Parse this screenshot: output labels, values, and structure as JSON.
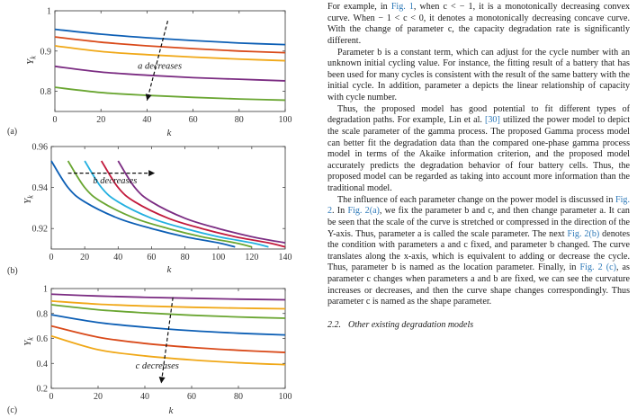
{
  "figure": {
    "panels": [
      {
        "label": "(a)",
        "y_axis_label": "Y_k",
        "x_axis_label": "k",
        "annotation": "a decreases",
        "chart_data": {
          "type": "line",
          "xlim": [
            0,
            100
          ],
          "ylim": [
            0.75,
            1.0
          ],
          "xticks": [
            "0",
            "20",
            "40",
            "60",
            "80",
            "100"
          ],
          "yticks": [
            "0.8",
            "0.9",
            "1"
          ],
          "grid": false,
          "series": [
            {
              "color": "#0d5fb5",
              "points": [
                [
                  0,
                  0.954
                ],
                [
                  20,
                  0.942
                ],
                [
                  40,
                  0.933
                ],
                [
                  60,
                  0.926
                ],
                [
                  80,
                  0.92
                ],
                [
                  100,
                  0.916
                ]
              ]
            },
            {
              "color": "#d94a1a",
              "points": [
                [
                  0,
                  0.935
                ],
                [
                  20,
                  0.922
                ],
                [
                  40,
                  0.913
                ],
                [
                  60,
                  0.906
                ],
                [
                  80,
                  0.9
                ],
                [
                  100,
                  0.896
                ]
              ]
            },
            {
              "color": "#f0a818",
              "points": [
                [
                  0,
                  0.913
                ],
                [
                  20,
                  0.899
                ],
                [
                  40,
                  0.891
                ],
                [
                  60,
                  0.885
                ],
                [
                  80,
                  0.88
                ],
                [
                  100,
                  0.876
                ]
              ]
            },
            {
              "color": "#7b2c82",
              "points": [
                [
                  0,
                  0.862
                ],
                [
                  20,
                  0.848
                ],
                [
                  40,
                  0.84
                ],
                [
                  60,
                  0.834
                ],
                [
                  80,
                  0.83
                ],
                [
                  100,
                  0.826
                ]
              ]
            },
            {
              "color": "#6aa632",
              "points": [
                [
                  0,
                  0.81
                ],
                [
                  20,
                  0.797
                ],
                [
                  40,
                  0.79
                ],
                [
                  60,
                  0.785
                ],
                [
                  80,
                  0.781
                ],
                [
                  100,
                  0.778
                ]
              ]
            }
          ]
        }
      },
      {
        "label": "(b)",
        "y_axis_label": "Y_k",
        "x_axis_label": "k",
        "annotation": "b decreases",
        "chart_data": {
          "type": "line",
          "xlim": [
            0,
            140
          ],
          "ylim": [
            0.91,
            0.96
          ],
          "xticks": [
            "0",
            "20",
            "40",
            "60",
            "80",
            "100",
            "120",
            "140"
          ],
          "yticks": [
            "0.92",
            "0.94",
            "0.96"
          ],
          "grid": false,
          "series": [
            {
              "color": "#0d5fb5",
              "points": [
                [
                  0,
                  0.953
                ],
                [
                  10,
                  0.94
                ],
                [
                  20,
                  0.933
                ],
                [
                  40,
                  0.925
                ],
                [
                  60,
                  0.92
                ],
                [
                  80,
                  0.916
                ],
                [
                  100,
                  0.913
                ],
                [
                  110,
                  0.911
                ]
              ]
            },
            {
              "color": "#6aa632",
              "points": [
                [
                  10,
                  0.953
                ],
                [
                  20,
                  0.94
                ],
                [
                  30,
                  0.933
                ],
                [
                  50,
                  0.925
                ],
                [
                  70,
                  0.92
                ],
                [
                  90,
                  0.916
                ],
                [
                  110,
                  0.913
                ],
                [
                  120,
                  0.911
                ]
              ]
            },
            {
              "color": "#23b0e0",
              "points": [
                [
                  20,
                  0.953
                ],
                [
                  30,
                  0.94
                ],
                [
                  40,
                  0.933
                ],
                [
                  60,
                  0.925
                ],
                [
                  80,
                  0.92
                ],
                [
                  100,
                  0.916
                ],
                [
                  120,
                  0.913
                ],
                [
                  130,
                  0.911
                ]
              ]
            },
            {
              "color": "#c21a3c",
              "points": [
                [
                  30,
                  0.953
                ],
                [
                  40,
                  0.94
                ],
                [
                  50,
                  0.933
                ],
                [
                  70,
                  0.925
                ],
                [
                  90,
                  0.92
                ],
                [
                  110,
                  0.916
                ],
                [
                  130,
                  0.913
                ],
                [
                  140,
                  0.911
                ]
              ]
            },
            {
              "color": "#7b2c82",
              "points": [
                [
                  40,
                  0.953
                ],
                [
                  50,
                  0.94
                ],
                [
                  60,
                  0.933
                ],
                [
                  80,
                  0.925
                ],
                [
                  100,
                  0.92
                ],
                [
                  120,
                  0.916
                ],
                [
                  140,
                  0.913
                ]
              ]
            }
          ]
        }
      },
      {
        "label": "(c)",
        "y_axis_label": "Y_k",
        "x_axis_label": "k",
        "annotation": "c decreases",
        "chart_data": {
          "type": "line",
          "xlim": [
            0,
            100
          ],
          "ylim": [
            0.2,
            1.0
          ],
          "xticks": [
            "0",
            "20",
            "40",
            "60",
            "80",
            "100"
          ],
          "yticks": [
            "0.2",
            "0.4",
            "0.6",
            "0.8",
            "1"
          ],
          "grid": false,
          "series": [
            {
              "color": "#7b2c82",
              "points": [
                [
                  0,
                  0.955
                ],
                [
                  20,
                  0.94
                ],
                [
                  40,
                  0.93
                ],
                [
                  60,
                  0.922
                ],
                [
                  80,
                  0.915
                ],
                [
                  100,
                  0.91
                ]
              ]
            },
            {
              "color": "#f0a818",
              "points": [
                [
                  0,
                  0.9
                ],
                [
                  20,
                  0.875
                ],
                [
                  40,
                  0.86
                ],
                [
                  60,
                  0.85
                ],
                [
                  80,
                  0.843
                ],
                [
                  100,
                  0.838
                ]
              ]
            },
            {
              "color": "#6aa632",
              "points": [
                [
                  0,
                  0.87
                ],
                [
                  20,
                  0.83
                ],
                [
                  40,
                  0.805
                ],
                [
                  60,
                  0.786
                ],
                [
                  80,
                  0.772
                ],
                [
                  100,
                  0.762
                ]
              ]
            },
            {
              "color": "#0d5fb5",
              "points": [
                [
                  0,
                  0.79
                ],
                [
                  20,
                  0.728
                ],
                [
                  40,
                  0.69
                ],
                [
                  60,
                  0.662
                ],
                [
                  80,
                  0.642
                ],
                [
                  100,
                  0.628
                ]
              ]
            },
            {
              "color": "#d94a1a",
              "points": [
                [
                  0,
                  0.7
                ],
                [
                  20,
                  0.61
                ],
                [
                  40,
                  0.56
                ],
                [
                  60,
                  0.528
                ],
                [
                  80,
                  0.505
                ],
                [
                  100,
                  0.488
                ]
              ]
            },
            {
              "color": "#f0a818",
              "points": [
                [
                  0,
                  0.62
                ],
                [
                  20,
                  0.51
                ],
                [
                  40,
                  0.46
                ],
                [
                  60,
                  0.428
                ],
                [
                  80,
                  0.405
                ],
                [
                  100,
                  0.39
                ]
              ]
            }
          ]
        }
      }
    ]
  },
  "text": {
    "para1": [
      {
        "t": "For example, in "
      },
      {
        "t": "Fig. 1",
        "link": true
      },
      {
        "t": ", when c < − 1, it is a monotonically decreasing convex curve. When − 1 < c < 0, it denotes a monotonically decreasing concave curve. With the change of parameter c, the capacity degradation rate is significantly different."
      }
    ],
    "para2": [
      {
        "t": "Parameter b is a constant term, which can adjust for the cycle number with an unknown initial cycling value. For instance, the fitting result of a battery that has been used for many cycles is consistent with the result of the same battery with the initial cycle. In addition, parameter a depicts the linear relationship of capacity with cycle number."
      }
    ],
    "para3": [
      {
        "t": "Thus, the proposed model has good potential to fit different types of degradation paths. For example, Lin et al. "
      },
      {
        "t": "[30]",
        "link": true
      },
      {
        "t": " utilized the power model to depict the scale parameter of the gamma process. The proposed Gamma process model can better fit the degradation data than the compared one-phase gamma process model in terms of the Akaike information criterion, and the proposed model accurately predicts the degradation behavior of four battery cells. Thus, the proposed model can be regarded as taking into account more information than the traditional model."
      }
    ],
    "para4": [
      {
        "t": "The influence of each parameter change on the power model is discussed in "
      },
      {
        "t": "Fig. 2",
        "link": true
      },
      {
        "t": ". In "
      },
      {
        "t": "Fig. 2(a)",
        "link": true
      },
      {
        "t": ", we fix the parameter b and c, and then change parameter a. It can be seen that the scale of the curve is stretched or compressed in the direction of the Y-axis. Thus, parameter a is called the scale parameter. The next "
      },
      {
        "t": "Fig. 2(b)",
        "link": true
      },
      {
        "t": " denotes the condition with parameters a and c fixed, and parameter b changed. The curve translates along the x-axis, which is equivalent to adding or decrease the cycle. Thus, parameter b is named as the location parameter. Finally, in "
      },
      {
        "t": "Fig. 2 (c)",
        "link": true
      },
      {
        "t": ", as parameter c changes when parameters a and b are fixed, we can see the curvature increases or decreases, and then the curve shape changes correspondingly. Thus parameter c is named as the shape parameter."
      }
    ],
    "section_number": "2.2.",
    "section_title": "Other existing degradation models"
  }
}
